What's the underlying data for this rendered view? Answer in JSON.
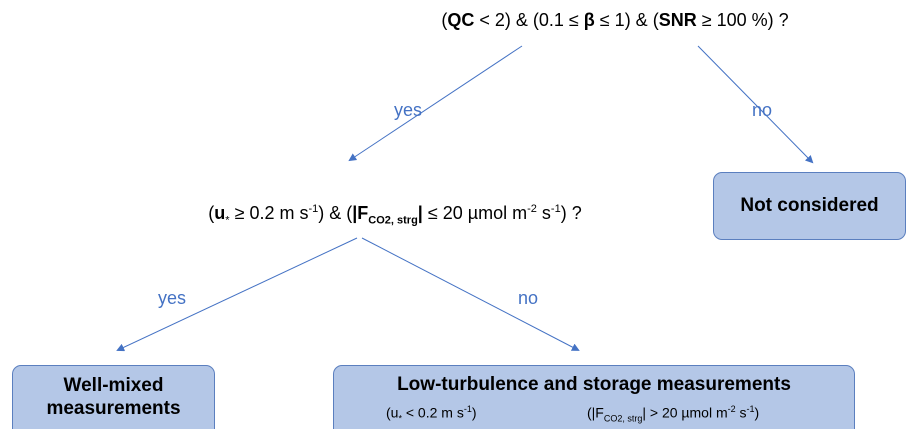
{
  "nodes": [
    {
      "segments": [
        "(",
        "QC",
        " < 2) & (0.1 ≤ ",
        "β",
        " ≤ 1) & (",
        "SNR",
        " ≥ 100 %) ?"
      ]
    },
    {
      "segments": [
        "(",
        "u",
        "*",
        " ≥ 0.2 m s",
        "-1",
        ") & (",
        "|F",
        "CO2, strg",
        "|",
        " ≤ 20 µmol m",
        "-2",
        " s",
        "-1",
        ") ?"
      ]
    },
    {
      "label": "Not considered"
    },
    {
      "lines": [
        "Well-mixed",
        "measurements"
      ]
    },
    {
      "label": "Low-turbulence and storage measurements",
      "notes": [
        {
          "segments": [
            "(u",
            "*",
            " < 0.2 m s",
            "-1",
            ")"
          ]
        },
        {
          "segments": [
            "(|F",
            "CO2, strg",
            "| > 20 µmol m",
            "-2",
            " s",
            "-1",
            ")"
          ]
        }
      ]
    }
  ],
  "edges": [
    {
      "label": "yes"
    },
    {
      "label": "no"
    },
    {
      "label": "yes"
    },
    {
      "label": "no"
    }
  ]
}
